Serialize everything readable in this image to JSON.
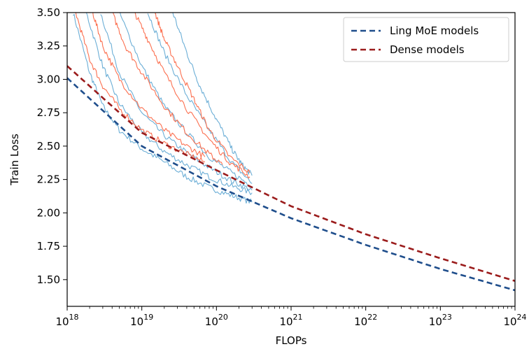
{
  "chart_data": {
    "type": "line",
    "xlabel": "FLOPs",
    "ylabel": "Train Loss",
    "xscale": "log",
    "xlim": [
      1e+18,
      1e+24
    ],
    "ylim": [
      1.3,
      3.5
    ],
    "grid": false,
    "legend_position": "top-right",
    "x_tick_labels": [
      {
        "base": "10",
        "exp": "18"
      },
      {
        "base": "10",
        "exp": "19"
      },
      {
        "base": "10",
        "exp": "20"
      },
      {
        "base": "10",
        "exp": "21"
      },
      {
        "base": "10",
        "exp": "22"
      },
      {
        "base": "10",
        "exp": "23"
      },
      {
        "base": "10",
        "exp": "24"
      }
    ],
    "y_tick_labels": [
      "1.50",
      "1.75",
      "2.00",
      "2.25",
      "2.50",
      "2.75",
      "3.00",
      "3.25",
      "3.50"
    ],
    "fit_curves": [
      {
        "name": "Ling MoE models",
        "color": "#1f4e8c",
        "style": "dashed",
        "points": [
          [
            1e+18,
            3.01
          ],
          [
            1e+19,
            2.5
          ],
          [
            1e+20,
            2.2
          ],
          [
            1e+21,
            1.96
          ],
          [
            1e+22,
            1.76
          ],
          [
            1e+23,
            1.58
          ],
          [
            1e+24,
            1.42
          ]
        ]
      },
      {
        "name": "Dense models",
        "color": "#9b1c1c",
        "style": "dashed",
        "points": [
          [
            1e+18,
            3.1
          ],
          [
            1e+19,
            2.6
          ],
          [
            1e+20,
            2.32
          ],
          [
            1e+21,
            2.05
          ],
          [
            1e+22,
            1.84
          ],
          [
            1e+23,
            1.66
          ],
          [
            1e+24,
            1.49
          ]
        ]
      }
    ],
    "run_curves": [
      {
        "color": "#6baed6",
        "points": [
          [
            1.2e+18,
            3.5
          ],
          [
            2e+18,
            3.05
          ],
          [
            3e+18,
            2.8
          ],
          [
            5e+18,
            2.62
          ],
          [
            1e+19,
            2.48
          ],
          [
            2e+19,
            2.38
          ],
          [
            4e+19,
            2.27
          ],
          [
            8e+19,
            2.19
          ],
          [
            1.6e+20,
            2.13
          ],
          [
            3e+20,
            2.08
          ]
        ]
      },
      {
        "color": "#6baed6",
        "points": [
          [
            1.8e+18,
            3.5
          ],
          [
            3e+18,
            3.1
          ],
          [
            5e+18,
            2.82
          ],
          [
            1e+19,
            2.6
          ],
          [
            2e+19,
            2.46
          ],
          [
            4e+19,
            2.36
          ],
          [
            8e+19,
            2.27
          ],
          [
            1.6e+20,
            2.2
          ],
          [
            3e+20,
            2.15
          ]
        ]
      },
      {
        "color": "#6baed6",
        "points": [
          [
            2.8e+18,
            3.5
          ],
          [
            5e+18,
            3.05
          ],
          [
            1e+19,
            2.75
          ],
          [
            2e+19,
            2.58
          ],
          [
            4e+19,
            2.45
          ],
          [
            8e+19,
            2.34
          ],
          [
            1.6e+20,
            2.24
          ],
          [
            3e+20,
            2.17
          ]
        ]
      },
      {
        "color": "#6baed6",
        "points": [
          [
            5e+18,
            3.5
          ],
          [
            1e+19,
            3.1
          ],
          [
            2e+19,
            2.8
          ],
          [
            4e+19,
            2.6
          ],
          [
            8e+19,
            2.42
          ],
          [
            1.6e+20,
            2.3
          ],
          [
            3e+20,
            2.2
          ]
        ]
      },
      {
        "color": "#6baed6",
        "points": [
          [
            1.2e+19,
            3.5
          ],
          [
            2e+19,
            3.2
          ],
          [
            4e+19,
            2.88
          ],
          [
            8e+19,
            2.62
          ],
          [
            1.6e+20,
            2.38
          ],
          [
            3e+20,
            2.22
          ]
        ]
      },
      {
        "color": "#6baed6",
        "points": [
          [
            2.6e+19,
            3.5
          ],
          [
            4e+19,
            3.2
          ],
          [
            6e+19,
            2.95
          ],
          [
            1e+20,
            2.7
          ],
          [
            1.6e+20,
            2.48
          ],
          [
            2.2e+20,
            2.36
          ],
          [
            3e+20,
            2.28
          ]
        ]
      },
      {
        "color": "#fc7050",
        "points": [
          [
            1.3e+18,
            3.5
          ],
          [
            2e+18,
            3.15
          ],
          [
            3e+18,
            2.95
          ],
          [
            5e+18,
            2.78
          ],
          [
            1e+19,
            2.62
          ],
          [
            2e+19,
            2.52
          ],
          [
            4e+19,
            2.44
          ],
          [
            7e+19,
            2.38
          ]
        ]
      },
      {
        "color": "#fc7050",
        "points": [
          [
            2.2e+18,
            3.5
          ],
          [
            3e+18,
            3.25
          ],
          [
            5e+18,
            3.0
          ],
          [
            1e+19,
            2.78
          ],
          [
            2e+19,
            2.62
          ],
          [
            4e+19,
            2.5
          ],
          [
            7e+19,
            2.42
          ]
        ]
      },
      {
        "color": "#fc7050",
        "points": [
          [
            4e+18,
            3.5
          ],
          [
            6e+18,
            3.25
          ],
          [
            1e+19,
            3.05
          ],
          [
            2e+19,
            2.8
          ],
          [
            4e+19,
            2.6
          ],
          [
            8e+19,
            2.44
          ],
          [
            1.2e+20,
            2.36
          ]
        ]
      },
      {
        "color": "#fc7050",
        "points": [
          [
            8e+18,
            3.5
          ],
          [
            1.2e+19,
            3.3
          ],
          [
            2e+19,
            3.05
          ],
          [
            4e+19,
            2.78
          ],
          [
            8e+19,
            2.55
          ],
          [
            1.5e+20,
            2.38
          ],
          [
            2.8e+20,
            2.27
          ]
        ]
      },
      {
        "color": "#fc7050",
        "points": [
          [
            1.5e+19,
            3.5
          ],
          [
            2e+19,
            3.3
          ],
          [
            3e+19,
            3.1
          ],
          [
            5e+19,
            2.85
          ],
          [
            8e+19,
            2.62
          ],
          [
            1.5e+20,
            2.42
          ],
          [
            2.8e+20,
            2.3
          ]
        ]
      }
    ]
  }
}
